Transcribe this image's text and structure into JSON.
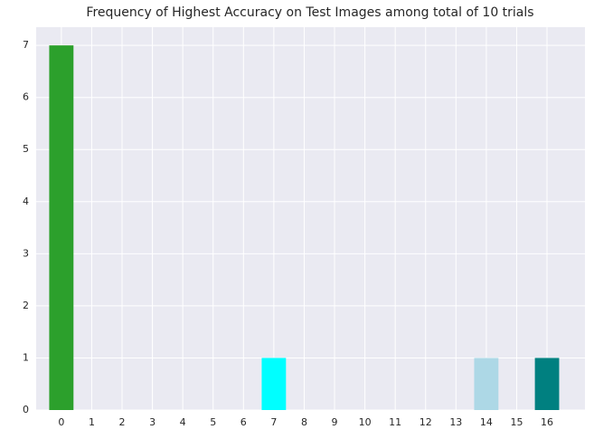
{
  "chart_data": {
    "type": "bar",
    "title": "Frequency of Highest Accuracy on Test Images among total of 10 trials",
    "x": [
      0,
      7,
      14,
      16
    ],
    "values": [
      7,
      1,
      1,
      1
    ],
    "colors": [
      "#2ca02c",
      "#00ffff",
      "#add8e6",
      "#008080"
    ],
    "xlim": [
      -0.83,
      17.25
    ],
    "xticks": [
      0,
      1,
      2,
      3,
      4,
      5,
      6,
      7,
      8,
      9,
      10,
      11,
      12,
      13,
      14,
      15,
      16
    ],
    "ylim": [
      0,
      7.35
    ],
    "yticks": [
      0,
      1,
      2,
      3,
      4,
      5,
      6,
      7
    ],
    "grid": true
  }
}
